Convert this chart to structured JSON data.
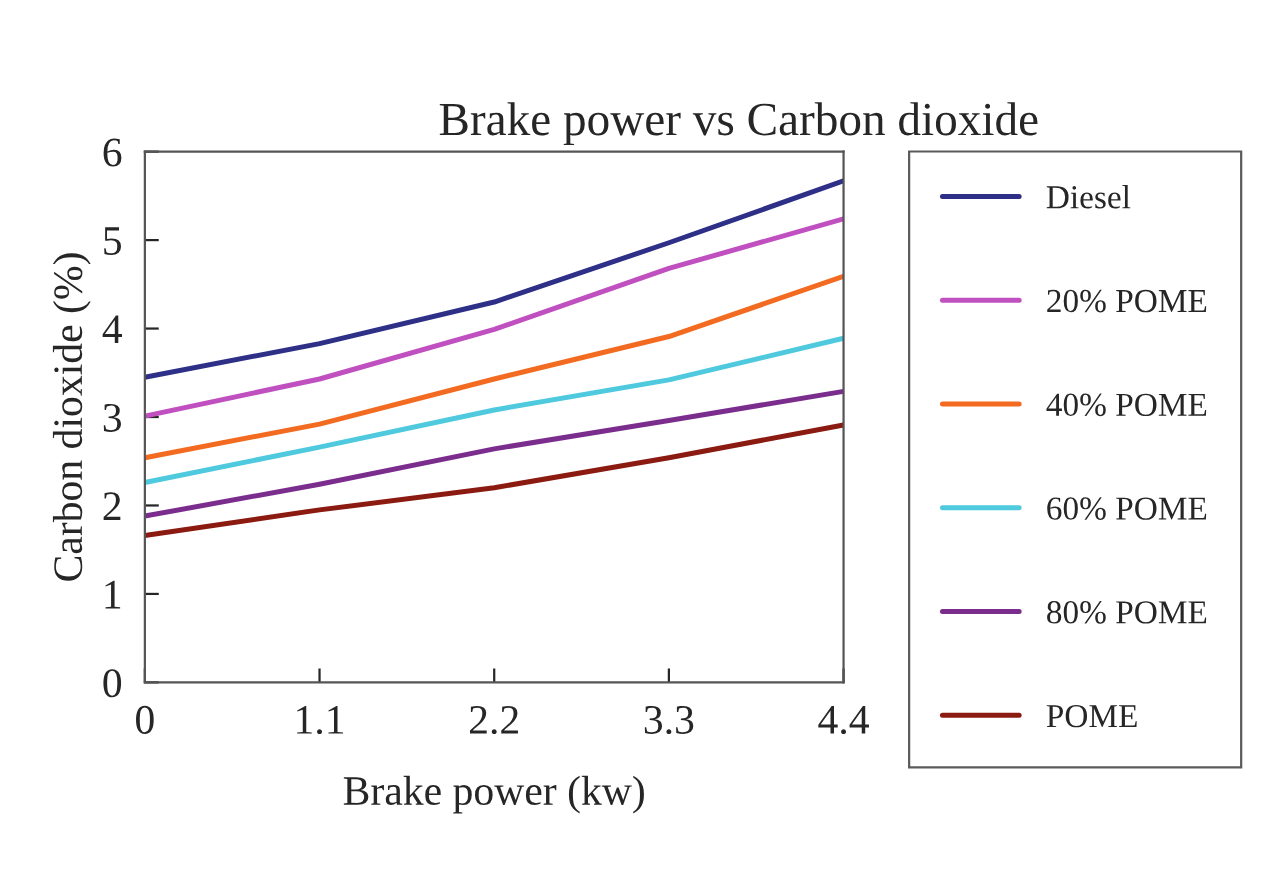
{
  "chart_data": {
    "type": "line",
    "title": "Brake power vs Carbon dioxide",
    "xlabel": "Brake power (kw)",
    "ylabel": "Carbon dioxide (%)",
    "x": [
      0,
      1.1,
      2.2,
      3.3,
      4.4
    ],
    "series": [
      {
        "name": "Diesel",
        "color": "#2e2f86",
        "values": [
          3.45,
          3.83,
          4.3,
          4.97,
          5.67
        ]
      },
      {
        "name": "20% POME",
        "color": "#c04fc0",
        "values": [
          3.01,
          3.43,
          3.99,
          4.68,
          5.24
        ]
      },
      {
        "name": "40% POME",
        "color": "#f26b21",
        "values": [
          2.54,
          2.92,
          3.43,
          3.91,
          4.59
        ]
      },
      {
        "name": "60% POME",
        "color": "#4ec9dd",
        "values": [
          2.26,
          2.66,
          3.08,
          3.42,
          3.89
        ]
      },
      {
        "name": "80% POME",
        "color": "#7b2d8e",
        "values": [
          1.88,
          2.24,
          2.64,
          2.96,
          3.29
        ]
      },
      {
        "name": "POME",
        "color": "#8b1a10",
        "values": [
          1.66,
          1.95,
          2.2,
          2.54,
          2.91
        ]
      }
    ],
    "xlim": [
      0,
      4.4
    ],
    "xticks": [
      0,
      1.1,
      2.2,
      3.3,
      4.4
    ],
    "ylim": [
      0,
      6
    ],
    "yticks": [
      0,
      1,
      2,
      3,
      4,
      5,
      6
    ],
    "grid": false,
    "legend": "right",
    "marker": "none",
    "line_style": "solid"
  }
}
